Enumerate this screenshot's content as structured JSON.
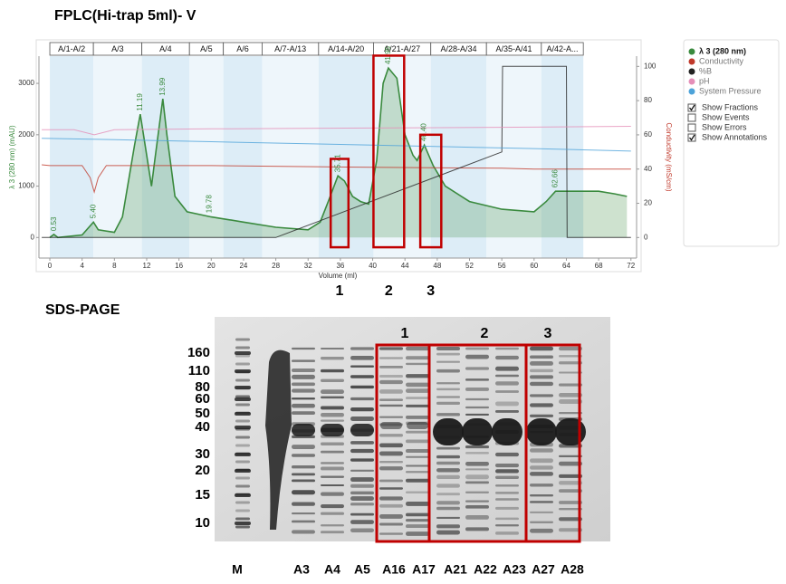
{
  "title": "FPLC(Hi-trap 5ml)- V",
  "chart_data": {
    "type": "line",
    "x_label": "Volume (ml)",
    "y_label": "λ 3 (280 nm) (mAU)",
    "y2_label": "Conductivity (mS/cm)",
    "xlim": [
      -1.35,
      72.7
    ],
    "xticks": [
      0,
      4,
      8,
      12,
      16,
      20,
      24,
      28,
      32,
      36,
      40,
      44,
      48,
      52,
      56,
      60,
      64,
      68,
      72
    ],
    "ylim": [
      -400,
      3530
    ],
    "yticks": [
      0,
      1000,
      2000,
      3000
    ],
    "y2lim": [
      -12,
      106
    ],
    "y2ticks": [
      0,
      20,
      40,
      60,
      80,
      100
    ],
    "legend": "right",
    "series": [
      {
        "name": "λ 3 (280 nm)",
        "color": "#3a8a3e",
        "area": true,
        "x": [
          0,
          0.5,
          1,
          4,
          5.4,
          6,
          8,
          9,
          10.5,
          11.2,
          12,
          12.6,
          13,
          14,
          14.5,
          15.5,
          17,
          20,
          22,
          24,
          28,
          32,
          33.5,
          34.5,
          35.7,
          36.5,
          37.5,
          38.5,
          39.5,
          40.5,
          41.3,
          41.95,
          43,
          44,
          45,
          45.5,
          46.4,
          47.5,
          49,
          52,
          56,
          60,
          61.5,
          62.66,
          64,
          68,
          70,
          71.5
        ],
        "values": [
          0,
          60,
          0,
          50,
          300,
          150,
          100,
          400,
          1800,
          2400,
          1600,
          1000,
          1500,
          2700,
          2000,
          800,
          500,
          400,
          350,
          300,
          200,
          150,
          300,
          700,
          1200,
          1100,
          800,
          700,
          650,
          1500,
          3000,
          3300,
          3100,
          2000,
          1600,
          1500,
          1800,
          1400,
          1000,
          700,
          550,
          500,
          700,
          900,
          900,
          900,
          850,
          800
        ]
      },
      {
        "name": "Conductivity",
        "color": "#c0392b",
        "axis": "y2",
        "x": [
          -1,
          0,
          4,
          5,
          5.5,
          6,
          7,
          10,
          20,
          40,
          56,
          60,
          72
        ],
        "values": [
          42.5,
          42,
          42,
          35,
          26.6,
          35,
          42,
          42,
          42,
          41,
          40.5,
          40,
          40
        ]
      },
      {
        "name": "%B",
        "color": "#222222",
        "axis": "y2",
        "x": [
          -1,
          28,
          56,
          56.1,
          64,
          64.1,
          72
        ],
        "values": [
          0,
          0,
          50,
          100,
          100,
          0,
          0
        ]
      },
      {
        "name": "pH",
        "color": "#e58fb8",
        "axis": "y2",
        "x": [
          -1,
          3,
          5.5,
          8,
          20,
          40,
          60,
          72
        ],
        "values": [
          63,
          63,
          60,
          63,
          63.5,
          64,
          64.5,
          65
        ]
      },
      {
        "name": "System Pressure",
        "color": "#4da3d9",
        "axis": "y2",
        "x": [
          -1,
          10,
          20,
          40,
          60,
          72
        ],
        "values": [
          58,
          57,
          56,
          54,
          52,
          50.5
        ]
      }
    ],
    "fractions": [
      {
        "label": "A/1-A/2",
        "start": 0,
        "end": 5.4
      },
      {
        "label": "A/3",
        "start": 5.4,
        "end": 11.4
      },
      {
        "label": "A/4",
        "start": 11.4,
        "end": 17.3
      },
      {
        "label": "A/5",
        "start": 17.3,
        "end": 21.5
      },
      {
        "label": "A/6",
        "start": 21.5,
        "end": 26.3
      },
      {
        "label": "A/7-A/13",
        "start": 26.3,
        "end": 33.3
      },
      {
        "label": "A/14-A/20",
        "start": 33.3,
        "end": 40.1
      },
      {
        "label": "A/21-A/27",
        "start": 40.1,
        "end": 47.2
      },
      {
        "label": "A/28-A/34",
        "start": 47.2,
        "end": 54.1
      },
      {
        "label": "A/35-A/41",
        "start": 54.1,
        "end": 60.9
      },
      {
        "label": "A/42-A...",
        "start": 60.9,
        "end": 66.1
      }
    ],
    "annotations": [
      {
        "value": 0.53,
        "label": "0.53"
      },
      {
        "value": 5.4,
        "label": "5.40"
      },
      {
        "value": 11.19,
        "label": "11.19"
      },
      {
        "value": 13.99,
        "label": "13.99"
      },
      {
        "value": 19.78,
        "label": "19.78"
      },
      {
        "value": 35.71,
        "label": "35.71"
      },
      {
        "value": 41.95,
        "label": "41.95"
      },
      {
        "value": 46.4,
        "label": "46.40"
      },
      {
        "value": 62.66,
        "label": "62.66"
      }
    ],
    "highlights": [
      {
        "label": "1",
        "xrange": [
          34.8,
          37.0
        ],
        "yrange": [
          -190,
          1530
        ]
      },
      {
        "label": "2",
        "xrange": [
          40.1,
          43.9
        ],
        "yrange": [
          -190,
          3540
        ]
      },
      {
        "label": "3",
        "xrange": [
          45.9,
          48.5
        ],
        "yrange": [
          -190,
          2000
        ]
      }
    ],
    "legend_options": [
      {
        "label": "Show Fractions",
        "checked": true
      },
      {
        "label": "Show Events",
        "checked": false
      },
      {
        "label": "Show Errors",
        "checked": false
      },
      {
        "label": "Show Annotations",
        "checked": true
      }
    ]
  },
  "gel": {
    "title": "SDS-PAGE",
    "markers": [
      160,
      110,
      80,
      60,
      50,
      40,
      30,
      20,
      15,
      10
    ],
    "lanes": [
      "M",
      "A3",
      "A4",
      "A5",
      "A16",
      "A17",
      "A21",
      "A22",
      "A23",
      "A27",
      "A28"
    ],
    "groups": [
      "1",
      "2",
      "3"
    ]
  }
}
